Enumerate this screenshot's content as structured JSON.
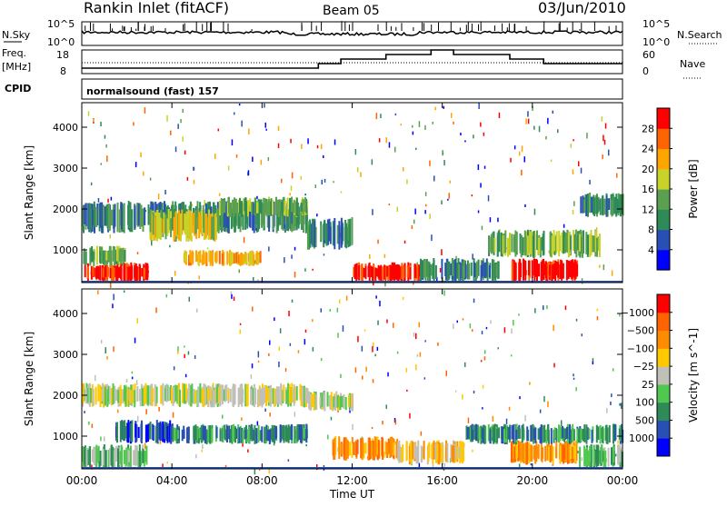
{
  "header": {
    "title": "Rankin Inlet (fitACF)",
    "beam": "Beam 05",
    "date": "03/Jun/2010"
  },
  "strip_panels": {
    "nsky": {
      "left_label": "N.Sky",
      "left_ticks": [
        "10^5",
        "10^0"
      ],
      "right_ticks": [
        "10^5",
        "10^0"
      ],
      "right_label": "N.Search"
    },
    "freq": {
      "left_label_1": "Freq.",
      "left_label_2": "[MHz]",
      "left_ticks": [
        "18",
        "8"
      ],
      "right_ticks": [
        "60",
        "0"
      ],
      "right_label": "Nave",
      "nave_steps": [
        [
          0,
          0
        ],
        [
          10.5,
          1
        ],
        [
          11.5,
          2
        ],
        [
          13.5,
          3
        ],
        [
          15.5,
          4
        ],
        [
          16.5,
          3
        ],
        [
          19,
          2
        ],
        [
          20.5,
          1
        ],
        [
          24,
          1
        ]
      ]
    },
    "cpid": {
      "label": "CPID",
      "text": "normalsound (fast) 157"
    }
  },
  "chart_data": [
    {
      "type": "heatmap",
      "title": "",
      "xlabel": "",
      "ylabel": "Slant Range [km]",
      "x_ticks": [
        "00:00",
        "04:00",
        "08:00",
        "12:00",
        "16:00",
        "20:00",
        "00:00"
      ],
      "xlim": [
        0,
        24
      ],
      "y_ticks": [
        "1000",
        "2000",
        "3000",
        "4000"
      ],
      "ylim": [
        200,
        4600
      ],
      "colorbar": {
        "label": "Power [dB]",
        "ticks": [
          "4",
          "8",
          "12",
          "16",
          "20",
          "24",
          "28"
        ],
        "colors": [
          "#0000ff",
          "#2850b4",
          "#2e8b57",
          "#5aa050",
          "#c8d228",
          "#ffa500",
          "#ff6400",
          "#ff0000"
        ]
      },
      "bands": [
        {
          "x": [
            0,
            3
          ],
          "y": [
            200,
            700
          ],
          "level": 7
        },
        {
          "x": [
            0,
            2
          ],
          "y": [
            600,
            1100
          ],
          "level": 3
        },
        {
          "x": [
            0,
            10
          ],
          "y": [
            1400,
            2200
          ],
          "level": 2
        },
        {
          "x": [
            3,
            6
          ],
          "y": [
            1200,
            2000
          ],
          "level": 4
        },
        {
          "x": [
            6,
            10
          ],
          "y": [
            1800,
            2300
          ],
          "level": 3
        },
        {
          "x": [
            4.5,
            8
          ],
          "y": [
            600,
            1000
          ],
          "level": 5
        },
        {
          "x": [
            12,
            15
          ],
          "y": [
            200,
            700
          ],
          "level": 7
        },
        {
          "x": [
            10,
            12
          ],
          "y": [
            1000,
            1800
          ],
          "level": 2
        },
        {
          "x": [
            15,
            18.5
          ],
          "y": [
            200,
            800
          ],
          "level": 2
        },
        {
          "x": [
            19,
            22
          ],
          "y": [
            200,
            800
          ],
          "level": 7
        },
        {
          "x": [
            18,
            23
          ],
          "y": [
            800,
            1500
          ],
          "level": 3
        },
        {
          "x": [
            22,
            24
          ],
          "y": [
            1800,
            2400
          ],
          "level": 2
        }
      ]
    },
    {
      "type": "heatmap",
      "title": "",
      "xlabel": "Time UT",
      "ylabel": "Slant Range [km]",
      "x_ticks": [
        "00:00",
        "04:00",
        "08:00",
        "12:00",
        "16:00",
        "20:00",
        "00:00"
      ],
      "xlim": [
        0,
        24
      ],
      "y_ticks": [
        "1000",
        "2000",
        "3000",
        "4000"
      ],
      "ylim": [
        200,
        4600
      ],
      "colorbar": {
        "label": "Velocity [m s^-1]",
        "ticks": [
          "1000",
          "500",
          "100",
          "25",
          "−25",
          "−100",
          "−500",
          "−1000"
        ],
        "colors": [
          "#0000ff",
          "#2850b4",
          "#2e8b57",
          "#50c850",
          "#c0c0b8",
          "#ffc800",
          "#ff8c00",
          "#ff6400",
          "#ff0000"
        ]
      },
      "bands": [
        {
          "x": [
            0,
            10
          ],
          "y": [
            1700,
            2300
          ],
          "level": 4
        },
        {
          "x": [
            0,
            3
          ],
          "y": [
            200,
            800
          ],
          "level": 3
        },
        {
          "x": [
            1.5,
            4
          ],
          "y": [
            800,
            1400
          ],
          "level": 1
        },
        {
          "x": [
            4,
            10
          ],
          "y": [
            800,
            1300
          ],
          "level": 2
        },
        {
          "x": [
            10,
            12
          ],
          "y": [
            1600,
            2100
          ],
          "level": 4
        },
        {
          "x": [
            11,
            14
          ],
          "y": [
            400,
            1000
          ],
          "level": 6
        },
        {
          "x": [
            14,
            17
          ],
          "y": [
            300,
            900
          ],
          "level": 5
        },
        {
          "x": [
            19,
            22
          ],
          "y": [
            300,
            900
          ],
          "level": 6
        },
        {
          "x": [
            22,
            24
          ],
          "y": [
            200,
            800
          ],
          "level": 3
        },
        {
          "x": [
            17,
            24
          ],
          "y": [
            800,
            1300
          ],
          "level": 2
        }
      ]
    }
  ]
}
